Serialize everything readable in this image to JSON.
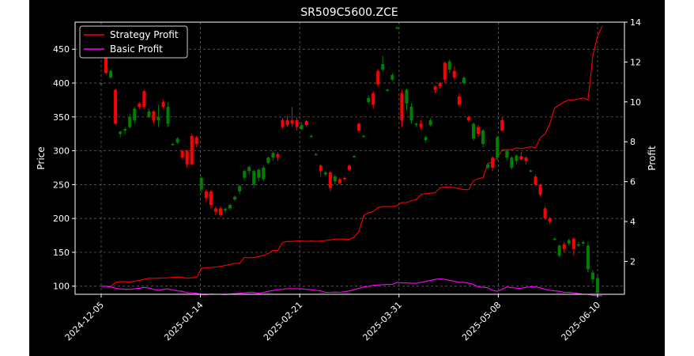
{
  "chart_data": {
    "type": "candlestick+line",
    "title": "SR509C5600.ZCE",
    "ylabel_left": "Price",
    "ylabel_right": "Profit",
    "ylim_left": [
      88,
      490
    ],
    "ylim_right": [
      0.35,
      14.0
    ],
    "yticks_left": [
      "100",
      "150",
      "200",
      "250",
      "300",
      "350",
      "400",
      "450"
    ],
    "yticks_right": [
      "2",
      "4",
      "6",
      "8",
      "10",
      "12",
      "14"
    ],
    "x_tick_labels": [
      "2024-12-05",
      "2025-01-14",
      "2025-02-21",
      "2025-03-31",
      "2025-05-08",
      "2025-06-10"
    ],
    "grid": true,
    "legend_position": "top-left",
    "legend": [
      {
        "label": "Strategy Profit",
        "color": "#ff0000"
      },
      {
        "label": "Basic Profit",
        "color": "#ff00ff"
      }
    ],
    "colors": {
      "background": "#000000",
      "foreground": "#ffffff",
      "up": "#008000",
      "down": "#ff0000",
      "grid": "#6e6e6e"
    },
    "candles": [
      [
        400,
        400,
        398,
        400
      ],
      [
        440,
        415,
        413,
        445
      ],
      [
        408,
        418,
        406,
        420
      ],
      [
        390,
        340,
        338,
        392
      ],
      [
        325,
        328,
        320,
        330
      ],
      [
        330,
        332,
        325,
        335
      ],
      [
        335,
        350,
        333,
        355
      ],
      [
        345,
        362,
        340,
        365
      ],
      [
        370,
        365,
        362,
        372
      ],
      [
        388,
        365,
        362,
        390
      ],
      [
        350,
        358,
        348,
        362
      ],
      [
        358,
        345,
        340,
        360
      ],
      [
        345,
        350,
        335,
        368
      ],
      [
        372,
        365,
        362,
        375
      ],
      [
        340,
        365,
        335,
        372
      ],
      [
        310,
        310,
        308,
        312
      ],
      [
        312,
        318,
        310,
        320
      ],
      [
        300,
        290,
        288,
        302
      ],
      [
        300,
        280,
        275,
        302
      ],
      [
        322,
        280,
        278,
        325
      ],
      [
        320,
        310,
        305,
        322
      ],
      [
        243,
        260,
        238,
        262
      ],
      [
        240,
        230,
        225,
        243
      ],
      [
        240,
        220,
        215,
        242
      ],
      [
        215,
        210,
        205,
        218
      ],
      [
        215,
        205,
        202,
        218
      ],
      [
        212,
        214,
        208,
        216
      ],
      [
        215,
        220,
        212,
        222
      ],
      [
        228,
        232,
        226,
        234
      ],
      [
        240,
        248,
        236,
        250
      ],
      [
        260,
        270,
        256,
        272
      ],
      [
        270,
        276,
        265,
        278
      ],
      [
        250,
        270,
        245,
        272
      ],
      [
        260,
        272,
        255,
        274
      ],
      [
        258,
        275,
        255,
        278
      ],
      [
        282,
        290,
        280,
        292
      ],
      [
        290,
        297,
        285,
        300
      ],
      [
        295,
        290,
        285,
        298
      ],
      [
        345,
        335,
        332,
        348
      ],
      [
        345,
        338,
        335,
        352
      ],
      [
        345,
        340,
        335,
        365
      ],
      [
        345,
        335,
        330,
        350
      ],
      [
        332,
        338,
        330,
        342
      ],
      [
        344,
        338,
        335,
        345
      ],
      [
        322,
        322,
        320,
        324
      ],
      [
        295,
        295,
        293,
        297
      ],
      [
        278,
        270,
        262,
        280
      ],
      [
        265,
        268,
        262,
        270
      ],
      [
        268,
        245,
        240,
        270
      ],
      [
        255,
        262,
        250,
        265
      ],
      [
        258,
        252,
        250,
        260
      ],
      [
        260,
        258,
        255,
        262
      ],
      [
        278,
        272,
        270,
        280
      ],
      [
        292,
        292,
        290,
        294
      ],
      [
        340,
        330,
        328,
        342
      ],
      [
        322,
        322,
        320,
        324
      ],
      [
        372,
        378,
        370,
        382
      ],
      [
        385,
        368,
        362,
        388
      ],
      [
        418,
        398,
        395,
        421
      ],
      [
        420,
        428,
        417,
        440
      ],
      [
        390,
        390,
        388,
        392
      ],
      [
        405,
        412,
        403,
        415
      ],
      [
        482,
        482,
        480,
        484
      ],
      [
        385,
        345,
        335,
        390
      ],
      [
        370,
        390,
        360,
        392
      ],
      [
        345,
        365,
        340,
        370
      ],
      [
        340,
        340,
        335,
        342
      ],
      [
        340,
        335,
        332,
        345
      ],
      [
        316,
        320,
        312,
        322
      ],
      [
        338,
        345,
        336,
        348
      ],
      [
        395,
        390,
        385,
        397
      ],
      [
        400,
        395,
        392,
        402
      ],
      [
        430,
        405,
        400,
        432
      ],
      [
        420,
        432,
        415,
        435
      ],
      [
        418,
        408,
        405,
        425
      ],
      [
        380,
        368,
        365,
        385
      ],
      [
        400,
        408,
        398,
        410
      ],
      [
        350,
        345,
        342,
        352
      ],
      [
        318,
        340,
        315,
        342
      ],
      [
        335,
        325,
        320,
        338
      ],
      [
        310,
        330,
        305,
        332
      ],
      [
        275,
        280,
        272,
        282
      ],
      [
        290,
        275,
        270,
        292
      ],
      [
        290,
        320,
        285,
        322
      ],
      [
        345,
        330,
        328,
        350
      ],
      [
        290,
        300,
        286,
        302
      ],
      [
        275,
        290,
        272,
        292
      ],
      [
        285,
        293,
        280,
        295
      ],
      [
        292,
        287,
        285,
        298
      ],
      [
        290,
        285,
        280,
        292
      ],
      [
        270,
        271,
        268,
        272
      ],
      [
        262,
        250,
        248,
        265
      ],
      [
        250,
        235,
        232,
        252
      ],
      [
        215,
        200,
        198,
        218
      ],
      [
        200,
        195,
        192,
        202
      ],
      [
        170,
        170,
        168,
        172
      ],
      [
        145,
        160,
        142,
        162
      ],
      [
        162,
        155,
        150,
        165
      ],
      [
        163,
        168,
        160,
        170
      ],
      [
        170,
        155,
        145,
        172
      ],
      [
        160,
        162,
        158,
        165
      ],
      [
        163,
        165,
        160,
        168
      ],
      [
        125,
        160,
        120,
        165
      ],
      [
        110,
        120,
        104,
        124
      ],
      [
        90,
        112,
        88,
        115
      ]
    ],
    "series": [
      {
        "name": "Strategy Profit",
        "values": [
          0.75,
          0.76,
          0.75,
          0.95,
          0.98,
          0.98,
          0.97,
          1.0,
          1.05,
          1.1,
          1.15,
          1.15,
          1.16,
          1.17,
          1.18,
          1.2,
          1.22,
          1.2,
          1.15,
          1.18,
          1.2,
          1.65,
          1.68,
          1.7,
          1.72,
          1.75,
          1.8,
          1.85,
          1.9,
          1.9,
          2.2,
          2.18,
          2.2,
          2.25,
          2.3,
          2.4,
          2.55,
          2.55,
          2.95,
          3.0,
          3.0,
          3.02,
          3.02,
          3.0,
          3.02,
          3.0,
          3.02,
          3.05,
          3.08,
          3.12,
          3.12,
          3.12,
          3.1,
          3.22,
          3.5,
          4.3,
          4.45,
          4.5,
          4.7,
          4.75,
          4.75,
          4.75,
          4.8,
          4.95,
          4.95,
          5.05,
          5.1,
          5.35,
          5.4,
          5.42,
          5.45,
          5.7,
          5.72,
          5.72,
          5.7,
          5.65,
          5.6,
          5.6,
          6.05,
          6.15,
          6.2,
          6.9,
          7.0,
          7.2,
          7.6,
          7.6,
          7.6,
          7.7,
          7.65,
          7.7,
          7.75,
          7.7,
          8.2,
          8.4,
          8.9,
          9.7,
          9.85,
          10.0,
          10.1,
          10.1,
          10.15,
          10.2,
          10.1,
          12.3,
          13.3,
          13.8
        ]
      },
      {
        "name": "Basic Profit",
        "values": [
          0.75,
          0.75,
          0.72,
          0.65,
          0.62,
          0.6,
          0.6,
          0.63,
          0.65,
          0.7,
          0.66,
          0.6,
          0.55,
          0.6,
          0.62,
          0.57,
          0.52,
          0.5,
          0.42,
          0.42,
          0.4,
          0.33,
          0.33,
          0.36,
          0.35,
          0.35,
          0.33,
          0.36,
          0.38,
          0.4,
          0.42,
          0.44,
          0.44,
          0.4,
          0.44,
          0.5,
          0.54,
          0.58,
          0.6,
          0.63,
          0.63,
          0.63,
          0.62,
          0.6,
          0.58,
          0.55,
          0.52,
          0.45,
          0.45,
          0.46,
          0.45,
          0.48,
          0.52,
          0.58,
          0.65,
          0.72,
          0.75,
          0.8,
          0.82,
          0.83,
          0.85,
          0.85,
          0.95,
          0.92,
          0.92,
          0.9,
          0.9,
          0.95,
          1.0,
          1.05,
          1.1,
          1.12,
          1.1,
          1.05,
          1.0,
          0.95,
          0.95,
          0.9,
          0.85,
          0.72,
          0.7,
          0.68,
          0.55,
          0.5,
          0.6,
          0.72,
          0.68,
          0.66,
          0.65,
          0.7,
          0.72,
          0.72,
          0.68,
          0.6,
          0.55,
          0.52,
          0.5,
          0.45,
          0.45,
          0.42,
          0.38,
          0.35,
          0.35,
          0.3,
          0.28,
          0.28
        ]
      }
    ]
  }
}
